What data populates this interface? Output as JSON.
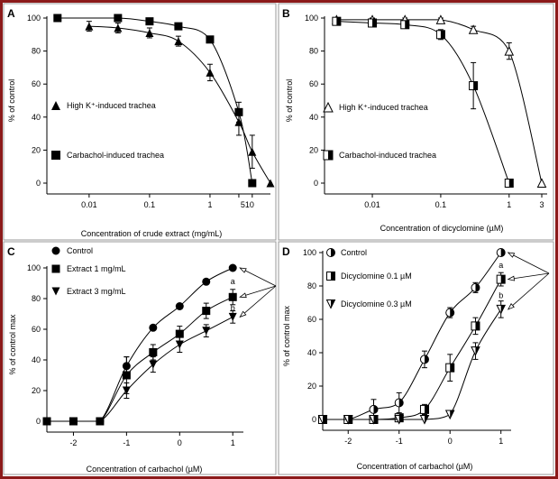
{
  "chart_data": [
    {
      "type": "line",
      "panel_label": "A",
      "xlabel": "Concentration of crude extract (mg/mL)",
      "ylabel": "% of control",
      "xscale": "log",
      "xlim": [
        0.002,
        10
      ],
      "ylim": [
        0,
        100
      ],
      "xticks": [
        {
          "value": 0.01,
          "label": "0.01"
        },
        {
          "value": 0.1,
          "label": "0.1"
        },
        {
          "value": 1,
          "label": "1"
        }
      ],
      "xticks_close": [
        {
          "value": 3,
          "label": "5"
        },
        {
          "value": 5,
          "label": "10"
        }
      ],
      "yticks": [
        0,
        20,
        40,
        60,
        80,
        100
      ],
      "legend_placement": "left",
      "series": [
        {
          "name": "High K⁺-induced trachea",
          "marker": "triangle",
          "x": [
            0.01,
            0.03,
            0.1,
            0.3,
            1,
            3,
            5,
            10
          ],
          "y": [
            95,
            94,
            91,
            86,
            67,
            37,
            19,
            0
          ],
          "err": [
            3,
            3,
            3,
            3,
            5,
            8,
            10,
            0
          ]
        },
        {
          "name": "Carbachol-induced trachea",
          "marker": "square",
          "x": [
            0.003,
            0.03,
            0.1,
            0.3,
            1,
            3,
            5
          ],
          "y": [
            100,
            100,
            98,
            95,
            87,
            43,
            0
          ],
          "err": [
            0,
            1,
            1,
            2,
            2,
            6,
            0
          ]
        }
      ]
    },
    {
      "type": "line",
      "panel_label": "B",
      "xlabel": "Concentration of dicyclomine (µM)",
      "ylabel": "% of control",
      "xscale": "log",
      "xlim": [
        0.002,
        3.6
      ],
      "ylim": [
        0,
        100
      ],
      "xticks": [
        {
          "value": 0.01,
          "label": "0.01"
        },
        {
          "value": 0.1,
          "label": "0.1"
        },
        {
          "value": 1,
          "label": "1"
        },
        {
          "value": 3,
          "label": "3"
        }
      ],
      "yticks": [
        0,
        20,
        40,
        60,
        80,
        100
      ],
      "legend_placement": "left",
      "series": [
        {
          "name": "High K⁺-induced trachea",
          "marker": "open-triangle",
          "x": [
            0.003,
            0.01,
            0.03,
            0.1,
            0.3,
            1,
            3
          ],
          "y": [
            99,
            99,
            99,
            99,
            93,
            80,
            0
          ],
          "err": [
            1,
            1,
            1,
            1,
            2,
            5,
            0
          ]
        },
        {
          "name": "Carbachol-induced trachea",
          "marker": "half-square",
          "x": [
            0.003,
            0.01,
            0.03,
            0.1,
            0.3,
            1
          ],
          "y": [
            98,
            97,
            96,
            90,
            59,
            0
          ],
          "err": [
            2,
            2,
            2,
            3,
            14,
            0
          ]
        }
      ]
    },
    {
      "type": "line",
      "panel_label": "C",
      "xlabel": "Concentration of carbachol (µM)",
      "ylabel": "% of control max",
      "xlim": [
        -2.5,
        1.2
      ],
      "ylim": [
        0,
        100
      ],
      "xticks": [
        -2,
        -1,
        0,
        1
      ],
      "yticks": [
        0,
        20,
        40,
        60,
        80,
        100
      ],
      "legend_placement": "top-left",
      "annotations": [
        "a",
        "b"
      ],
      "series": [
        {
          "name": "Control",
          "marker": "circle",
          "x": [
            -2.5,
            -2,
            -1.5,
            -1,
            -0.5,
            0,
            0.5,
            1
          ],
          "y": [
            0,
            0,
            0,
            36,
            61,
            75,
            91,
            100
          ],
          "err": [
            0,
            0,
            0,
            6,
            0,
            0,
            0,
            0
          ]
        },
        {
          "name": "Extract 1 mg/mL",
          "marker": "square",
          "x": [
            -2.5,
            -2,
            -1.5,
            -1,
            -0.5,
            0,
            0.5,
            1
          ],
          "y": [
            0,
            0,
            0,
            30,
            45,
            57,
            72,
            81
          ],
          "err": [
            0,
            0,
            0,
            12,
            5,
            5,
            5,
            5
          ]
        },
        {
          "name": "Extract 3 mg/mL",
          "marker": "inverted-triangle",
          "x": [
            -2.5,
            -2,
            -1.5,
            -1,
            -0.5,
            0,
            0.5,
            1
          ],
          "y": [
            0,
            0,
            0,
            20,
            37,
            50,
            59,
            68
          ],
          "err": [
            0,
            0,
            0,
            5,
            5,
            5,
            4,
            4
          ]
        }
      ]
    },
    {
      "type": "line",
      "panel_label": "D",
      "xlabel": "Concentration of carbachol (µM)",
      "ylabel": "% of control max",
      "xlim": [
        -2.5,
        1.2
      ],
      "ylim": [
        0,
        100
      ],
      "xticks": [
        -2,
        -1,
        0,
        1
      ],
      "yticks": [
        0,
        20,
        40,
        60,
        80,
        100
      ],
      "legend_placement": "top-left",
      "annotations": [
        "a",
        "b"
      ],
      "series": [
        {
          "name": "Control",
          "marker": "half-circle",
          "x": [
            -2.5,
            -2,
            -1.5,
            -1,
            -0.5,
            0,
            0.5,
            1
          ],
          "y": [
            0,
            0,
            6,
            10,
            36,
            64,
            79,
            100
          ],
          "err": [
            0,
            0,
            6,
            6,
            5,
            3,
            3,
            0
          ]
        },
        {
          "name": "Dicyclomine 0.1 µM",
          "marker": "half-square",
          "x": [
            -2.5,
            -2,
            -1.5,
            -1,
            -0.5,
            0,
            0.5,
            1
          ],
          "y": [
            0,
            0,
            0,
            1,
            6,
            31,
            56,
            84
          ],
          "err": [
            0,
            0,
            0,
            1,
            3,
            8,
            5,
            4
          ]
        },
        {
          "name": "Dicyclomine 0.3 µM",
          "marker": "half-inverted-triangle",
          "x": [
            -2.5,
            -2,
            -1.5,
            -1,
            -0.5,
            0,
            0.5,
            1
          ],
          "y": [
            0,
            0,
            0,
            0,
            0,
            3,
            41,
            66
          ],
          "err": [
            0,
            0,
            0,
            0,
            0,
            0,
            5,
            5
          ]
        }
      ]
    }
  ]
}
